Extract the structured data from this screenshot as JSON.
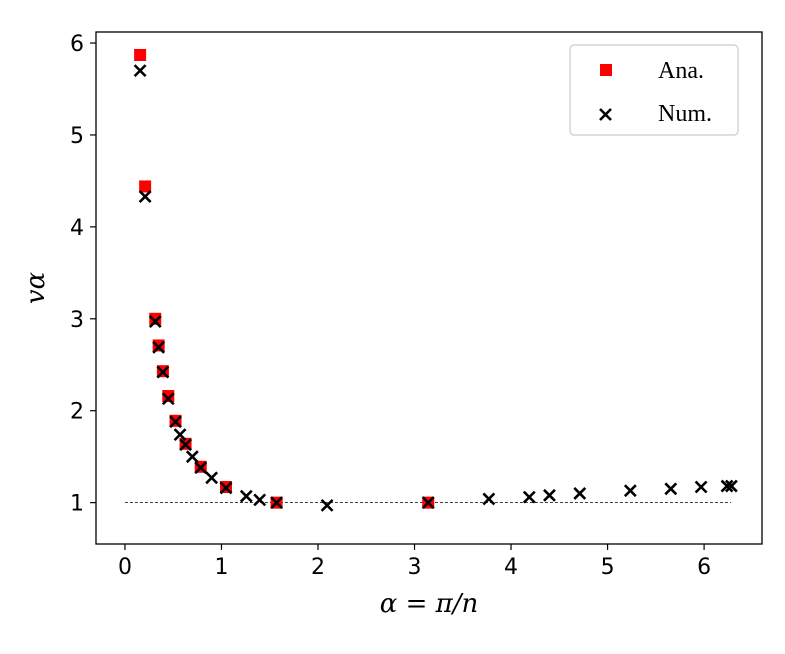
{
  "chart_data": {
    "type": "scatter",
    "xlabel": "α = π/n",
    "ylabel": "vα",
    "xlim": [
      -0.3,
      6.6
    ],
    "ylim": [
      0.55,
      6.12
    ],
    "x_ticks": [
      0,
      1,
      2,
      3,
      4,
      5,
      6
    ],
    "y_ticks": [
      1,
      2,
      3,
      4,
      5,
      6
    ],
    "reference_line": {
      "y": 1,
      "x_range": [
        0,
        6.28
      ],
      "style": "dashed"
    },
    "legend": {
      "position": "top-right"
    },
    "series": [
      {
        "name": "Ana.",
        "marker": "square",
        "color": "#ff0000",
        "points": [
          [
            0.157,
            5.87
          ],
          [
            0.209,
            4.44
          ],
          [
            0.314,
            3.0
          ],
          [
            0.349,
            2.71
          ],
          [
            0.393,
            2.43
          ],
          [
            0.449,
            2.16
          ],
          [
            0.524,
            1.89
          ],
          [
            0.628,
            1.64
          ],
          [
            0.785,
            1.39
          ],
          [
            1.047,
            1.17
          ],
          [
            1.571,
            1.0
          ],
          [
            3.142,
            1.0
          ]
        ]
      },
      {
        "name": "Num.",
        "marker": "x",
        "color": "#000000",
        "points": [
          [
            0.157,
            5.7
          ],
          [
            0.209,
            4.33
          ],
          [
            0.314,
            2.97
          ],
          [
            0.349,
            2.69
          ],
          [
            0.393,
            2.42
          ],
          [
            0.449,
            2.13
          ],
          [
            0.524,
            1.88
          ],
          [
            0.571,
            1.74
          ],
          [
            0.628,
            1.63
          ],
          [
            0.698,
            1.5
          ],
          [
            0.785,
            1.38
          ],
          [
            0.898,
            1.27
          ],
          [
            1.047,
            1.16
          ],
          [
            1.257,
            1.07
          ],
          [
            1.396,
            1.03
          ],
          [
            1.571,
            1.0
          ],
          [
            2.094,
            0.97
          ],
          [
            3.142,
            1.0
          ],
          [
            3.77,
            1.04
          ],
          [
            4.189,
            1.06
          ],
          [
            4.398,
            1.08
          ],
          [
            4.712,
            1.1
          ],
          [
            5.236,
            1.13
          ],
          [
            5.655,
            1.15
          ],
          [
            5.969,
            1.17
          ],
          [
            6.238,
            1.18
          ],
          [
            6.283,
            1.18
          ]
        ]
      }
    ]
  }
}
